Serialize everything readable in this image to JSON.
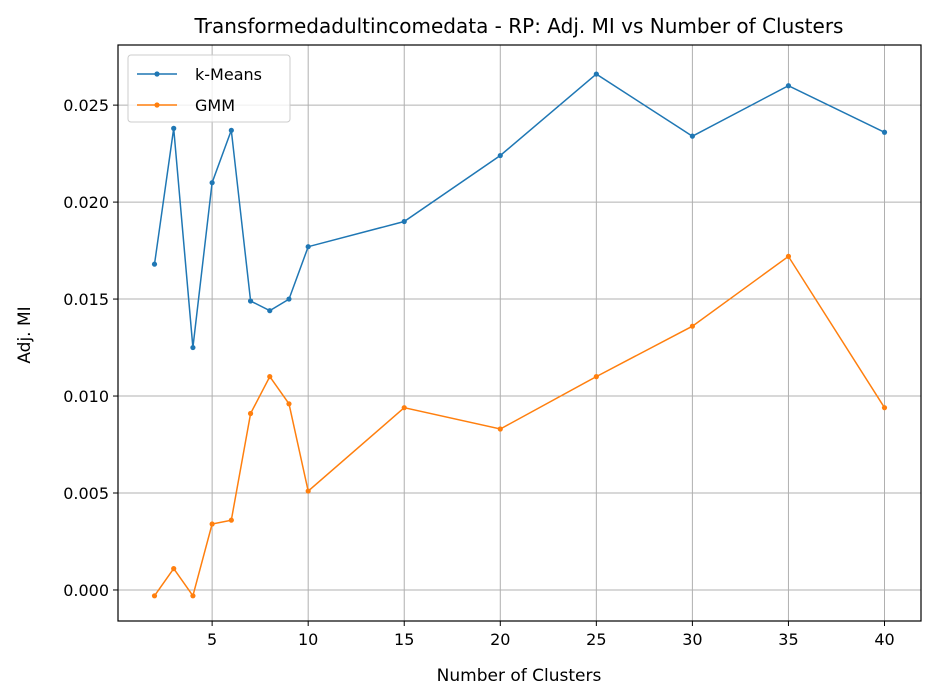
{
  "chart_data": {
    "type": "line",
    "title": "Transformedadultincomedata - RP: Adj. MI vs Number of Clusters",
    "xlabel": "Number of Clusters",
    "ylabel": "Adj. MI",
    "x": [
      2,
      3,
      4,
      5,
      6,
      7,
      8,
      9,
      10,
      15,
      20,
      25,
      30,
      35,
      40
    ],
    "xlim": [
      0.1,
      41.9
    ],
    "ylim": [
      -0.0016,
      0.0281
    ],
    "xticks": [
      5,
      10,
      15,
      20,
      25,
      30,
      35,
      40
    ],
    "xtick_labels": [
      "5",
      "10",
      "15",
      "20",
      "25",
      "30",
      "35",
      "40"
    ],
    "yticks": [
      0.0,
      0.005,
      0.01,
      0.015,
      0.02,
      0.025
    ],
    "ytick_labels": [
      "0.000",
      "0.005",
      "0.010",
      "0.015",
      "0.020",
      "0.025"
    ],
    "grid": true,
    "legend_position": "top-left",
    "series": [
      {
        "name": "k-Means",
        "color": "#1f77b4",
        "values": [
          0.0168,
          0.0238,
          0.0125,
          0.021,
          0.0237,
          0.0149,
          0.0144,
          0.015,
          0.0177,
          0.019,
          0.0224,
          0.0266,
          0.0234,
          0.026,
          0.0236
        ]
      },
      {
        "name": "GMM",
        "color": "#ff7f0e",
        "values": [
          -0.0003,
          0.0011,
          -0.0003,
          0.0034,
          0.0036,
          0.0091,
          0.011,
          0.0096,
          0.0051,
          0.0094,
          0.0083,
          0.011,
          0.0136,
          0.0172,
          0.0094
        ]
      }
    ]
  }
}
